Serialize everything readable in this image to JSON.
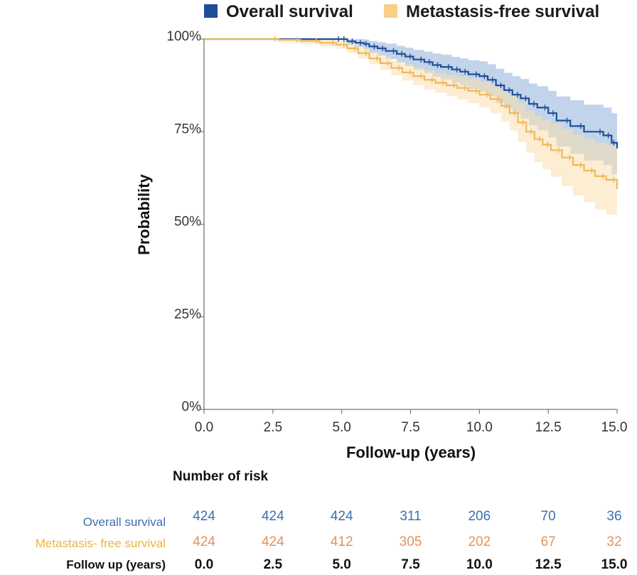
{
  "chart_data": {
    "type": "line",
    "subtype": "kaplan-meier",
    "xlabel": "Follow-up (years)",
    "ylabel": "Probability",
    "xlim": [
      0,
      15
    ],
    "ylim": [
      0,
      1
    ],
    "x_ticks": [
      "0.0",
      "2.5",
      "5.0",
      "7.5",
      "10.0",
      "12.5",
      "15.0"
    ],
    "y_ticks": [
      "0%",
      "25%",
      "50%",
      "75%",
      "100%"
    ],
    "legend": [
      "Overall survival",
      "Metastasis-free survival"
    ],
    "series": [
      {
        "name": "Overall survival",
        "color": "#1f4e99",
        "band_color": "#8fb0d8",
        "x": [
          0,
          5.0,
          5.2,
          5.5,
          5.8,
          6.0,
          6.3,
          6.6,
          7.0,
          7.3,
          7.6,
          8.0,
          8.3,
          8.6,
          9.0,
          9.3,
          9.6,
          10.0,
          10.3,
          10.6,
          10.9,
          11.2,
          11.5,
          11.8,
          12.1,
          12.5,
          12.8,
          13.3,
          13.8,
          14.5,
          14.8,
          15.0
        ],
        "y": [
          1.0,
          1.0,
          0.994,
          0.99,
          0.987,
          0.98,
          0.975,
          0.968,
          0.96,
          0.953,
          0.945,
          0.938,
          0.93,
          0.925,
          0.918,
          0.912,
          0.905,
          0.9,
          0.89,
          0.875,
          0.862,
          0.85,
          0.84,
          0.825,
          0.815,
          0.8,
          0.78,
          0.765,
          0.75,
          0.74,
          0.72,
          0.705
        ],
        "lower": [
          1.0,
          1.0,
          0.985,
          0.978,
          0.972,
          0.963,
          0.955,
          0.946,
          0.936,
          0.927,
          0.917,
          0.908,
          0.898,
          0.891,
          0.882,
          0.874,
          0.865,
          0.858,
          0.846,
          0.828,
          0.813,
          0.798,
          0.785,
          0.767,
          0.754,
          0.735,
          0.71,
          0.69,
          0.672,
          0.66,
          0.635,
          0.615
        ],
        "upper": [
          1.0,
          1.0,
          1.0,
          1.0,
          0.999,
          0.995,
          0.992,
          0.988,
          0.982,
          0.977,
          0.971,
          0.966,
          0.961,
          0.958,
          0.952,
          0.948,
          0.943,
          0.94,
          0.932,
          0.92,
          0.909,
          0.9,
          0.892,
          0.88,
          0.873,
          0.86,
          0.845,
          0.835,
          0.823,
          0.815,
          0.8,
          0.79
        ],
        "at_risk": [
          "424",
          "424",
          "424",
          "311",
          "206",
          "70",
          "36"
        ]
      },
      {
        "name": "Metastasis-free survival",
        "color": "#f0b85a",
        "band_color": "#f9dfae",
        "x": [
          0,
          2.7,
          3.5,
          4.2,
          4.8,
          5.2,
          5.6,
          6.0,
          6.4,
          6.8,
          7.2,
          7.6,
          8.0,
          8.4,
          8.8,
          9.2,
          9.6,
          10.0,
          10.4,
          10.8,
          11.1,
          11.4,
          11.7,
          12.0,
          12.3,
          12.6,
          13.0,
          13.4,
          13.8,
          14.2,
          14.6,
          15.0
        ],
        "y": [
          1.0,
          0.998,
          0.995,
          0.99,
          0.985,
          0.975,
          0.962,
          0.948,
          0.935,
          0.922,
          0.91,
          0.9,
          0.89,
          0.882,
          0.875,
          0.868,
          0.86,
          0.85,
          0.838,
          0.82,
          0.8,
          0.775,
          0.75,
          0.73,
          0.715,
          0.7,
          0.68,
          0.66,
          0.645,
          0.63,
          0.62,
          0.595
        ],
        "lower": [
          1.0,
          0.99,
          0.986,
          0.98,
          0.974,
          0.962,
          0.947,
          0.932,
          0.917,
          0.902,
          0.888,
          0.876,
          0.864,
          0.855,
          0.846,
          0.837,
          0.827,
          0.815,
          0.8,
          0.778,
          0.753,
          0.722,
          0.693,
          0.668,
          0.648,
          0.628,
          0.603,
          0.578,
          0.56,
          0.54,
          0.526,
          0.49
        ],
        "upper": [
          1.0,
          1.0,
          1.0,
          0.998,
          0.995,
          0.988,
          0.977,
          0.964,
          0.953,
          0.942,
          0.932,
          0.924,
          0.916,
          0.909,
          0.904,
          0.899,
          0.893,
          0.885,
          0.876,
          0.862,
          0.847,
          0.828,
          0.807,
          0.792,
          0.782,
          0.772,
          0.757,
          0.742,
          0.73,
          0.72,
          0.714,
          0.7
        ],
        "at_risk": [
          "424",
          "424",
          "412",
          "305",
          "202",
          "67",
          "32"
        ]
      }
    ]
  },
  "risk_table": {
    "title": "Number of risk",
    "row_labels": [
      "Overall survival",
      "Metastasis- free survival",
      "Follow up (years)"
    ],
    "overall": [
      "424",
      "424",
      "424",
      "311",
      "206",
      "70",
      "36"
    ],
    "metastasis": [
      "424",
      "424",
      "412",
      "305",
      "202",
      "67",
      "32"
    ],
    "years": [
      "0.0",
      "2.5",
      "5.0",
      "7.5",
      "10.0",
      "12.5",
      "15.0"
    ]
  },
  "colors": {
    "overall": "#1f4e99",
    "overall_band": "#8fb0d8",
    "metastasis": "#f0b85a",
    "metastasis_band": "#f9dfae",
    "overall_table": "#3d6fb0",
    "metastasis_table": "#e0935a",
    "metastasis_table_label": "#efb33a"
  }
}
